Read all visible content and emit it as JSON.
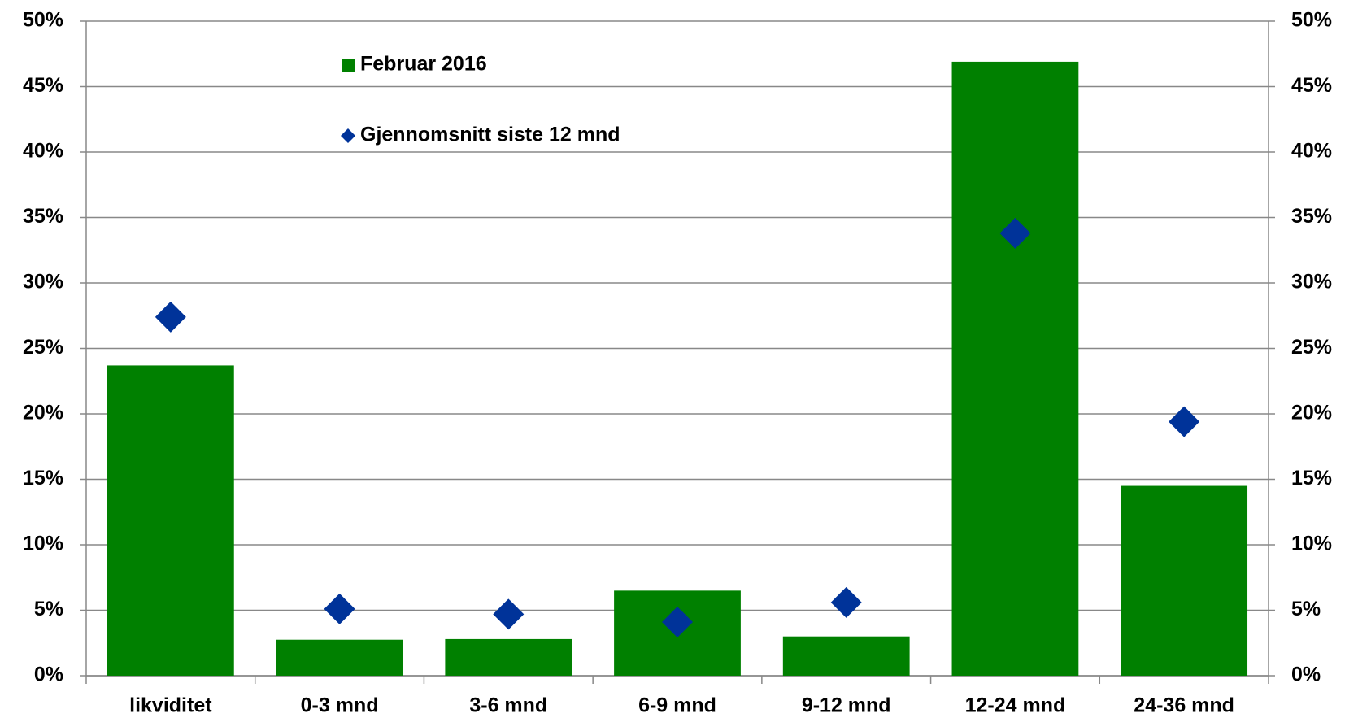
{
  "chart_data": {
    "type": "bar",
    "categories": [
      "likviditet",
      "0-3 mnd",
      "3-6 mnd",
      "6-9 mnd",
      "9-12 mnd",
      "12-24 mnd",
      "24-36 mnd"
    ],
    "series": [
      {
        "name": "Februar 2016",
        "type": "bar",
        "color": "#008000",
        "values": [
          23.7,
          2.75,
          2.8,
          6.5,
          3.0,
          46.9,
          14.5
        ]
      },
      {
        "name": "Gjennomsnitt siste 12 mnd",
        "type": "scatter",
        "axis": "y2",
        "color": "#003399",
        "values": [
          27.4,
          5.1,
          4.7,
          4.1,
          5.6,
          33.8,
          19.4
        ]
      }
    ],
    "ylim": [
      0,
      50
    ],
    "yticks": [
      {
        "value": 0,
        "label": "0%"
      },
      {
        "value": 5,
        "label": "5%"
      },
      {
        "value": 10,
        "label": "10%"
      },
      {
        "value": 15,
        "label": "15%"
      },
      {
        "value": 20,
        "label": "20%"
      },
      {
        "value": 25,
        "label": "25%"
      },
      {
        "value": 30,
        "label": "30%"
      },
      {
        "value": 35,
        "label": "35%"
      },
      {
        "value": 40,
        "label": "40%"
      },
      {
        "value": 45,
        "label": "45%"
      },
      {
        "value": 50,
        "label": "50%"
      }
    ],
    "y2lim": [
      0,
      50
    ],
    "y2ticks": [
      {
        "value": 0,
        "label": "0%"
      },
      {
        "value": 5,
        "label": "5%"
      },
      {
        "value": 10,
        "label": "10%"
      },
      {
        "value": 15,
        "label": "15%"
      },
      {
        "value": 20,
        "label": "20%"
      },
      {
        "value": 25,
        "label": "25%"
      },
      {
        "value": 30,
        "label": "30%"
      },
      {
        "value": 35,
        "label": "35%"
      },
      {
        "value": 40,
        "label": "40%"
      },
      {
        "value": 45,
        "label": "45%"
      },
      {
        "value": 50,
        "label": "50%"
      }
    ],
    "grid": true,
    "legend": "top-left"
  }
}
